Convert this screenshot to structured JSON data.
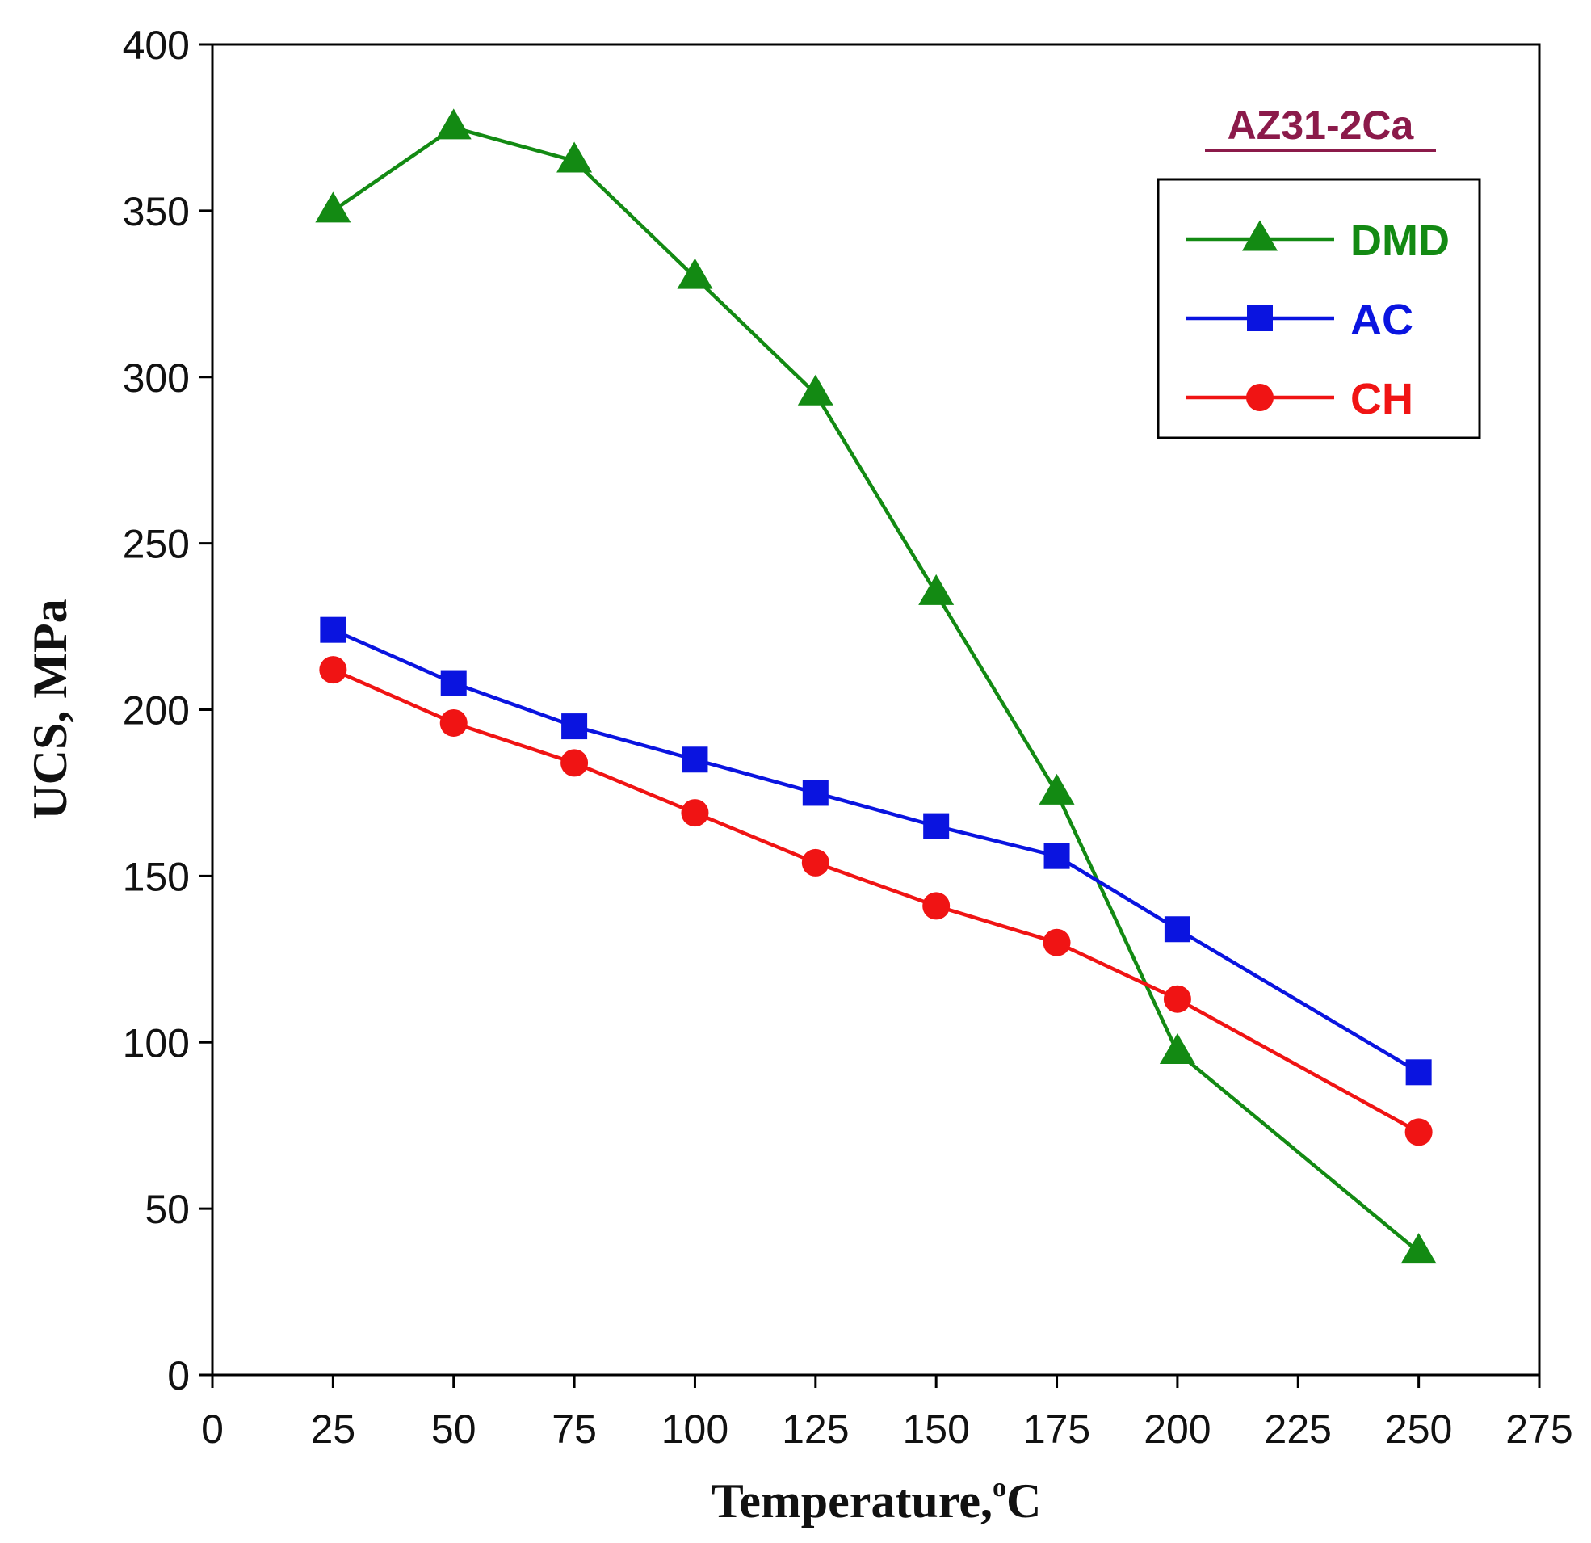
{
  "chart_data": {
    "type": "line",
    "title": "AZ31-2Ca",
    "xlabel": "Temperature,",
    "xlabel_sup": "o",
    "xlabel_unit": "C",
    "ylabel": "UCS, MPa",
    "xlim": [
      0,
      275
    ],
    "ylim": [
      0,
      400
    ],
    "xticks": [
      0,
      25,
      50,
      75,
      100,
      125,
      150,
      175,
      200,
      225,
      250,
      275
    ],
    "yticks": [
      0,
      50,
      100,
      150,
      200,
      250,
      300,
      350,
      400
    ],
    "grid": false,
    "legend_position": "top-right",
    "series": [
      {
        "name": "DMD",
        "color": "#138a13",
        "marker": "triangle",
        "x": [
          25,
          50,
          75,
          100,
          125,
          150,
          175,
          200,
          250
        ],
        "y": [
          350,
          375,
          365,
          330,
          295,
          235,
          175,
          97,
          37
        ]
      },
      {
        "name": "AC",
        "color": "#0a14e0",
        "marker": "square",
        "x": [
          25,
          50,
          75,
          100,
          125,
          150,
          175,
          200,
          250
        ],
        "y": [
          224,
          208,
          195,
          185,
          175,
          165,
          156,
          134,
          91
        ]
      },
      {
        "name": "CH",
        "color": "#f01414",
        "marker": "circle",
        "x": [
          25,
          50,
          75,
          100,
          125,
          150,
          175,
          200,
          250
        ],
        "y": [
          212,
          196,
          184,
          169,
          154,
          141,
          130,
          113,
          73
        ]
      }
    ]
  }
}
